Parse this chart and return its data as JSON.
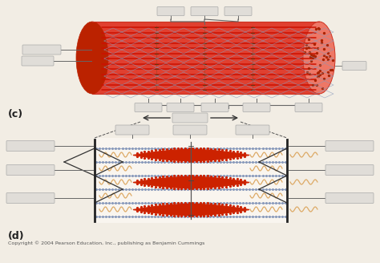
{
  "bg_color": "#f2ede4",
  "title_c": "(c)",
  "title_d": "(d)",
  "copyright": "Copyright © 2004 Pearson Education, Inc., publishing as Benjamin Cummings",
  "cyl_red": "#dd3311",
  "cyl_body": "#e04030",
  "cyl_light": "#ee7766",
  "cyl_dark": "#bb2200",
  "dot_color": "#aa2200",
  "line_red": "#cc1100",
  "hex_blue": "#8899bb",
  "label_fill": "#e0ddd8",
  "label_edge": "#aaaaaa",
  "actin_color": "#8899bb",
  "myosin_color": "#cc2200",
  "titin_color": "#ddaa66",
  "zline_color": "#222222",
  "mline_color": "#555555",
  "arrow_color": "#333333",
  "dash_color": "#555555"
}
